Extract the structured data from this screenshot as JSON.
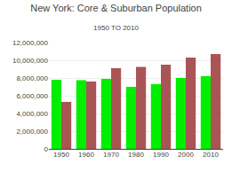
{
  "chart_data": {
    "type": "bar",
    "title": "New York: Core & Suburban Population",
    "subtitle": "1950 TO 2010",
    "categories": [
      "1950",
      "1960",
      "1970",
      "1980",
      "1990",
      "2000",
      "2010"
    ],
    "series": [
      {
        "color": "#00ee00",
        "values": [
          7800000,
          7750000,
          7900000,
          7000000,
          7300000,
          8000000,
          8200000
        ]
      },
      {
        "color": "#aa5555",
        "values": [
          5300000,
          7600000,
          9100000,
          9250000,
          9500000,
          10300000,
          10700000
        ]
      }
    ],
    "ylim": [
      0,
      12000000
    ],
    "yticks": [
      0,
      {
        "value": 2000000,
        "label": "2,000,000"
      },
      {
        "value": 4000000,
        "label": "4,000,000"
      },
      {
        "value": 6000000,
        "label": "6,000,000"
      },
      {
        "value": 8000000,
        "label": "8,000,000"
      },
      {
        "value": 10000000,
        "label": "10,000,000"
      },
      {
        "value": 12000000,
        "label": "12,000,000"
      }
    ],
    "grid": true
  }
}
